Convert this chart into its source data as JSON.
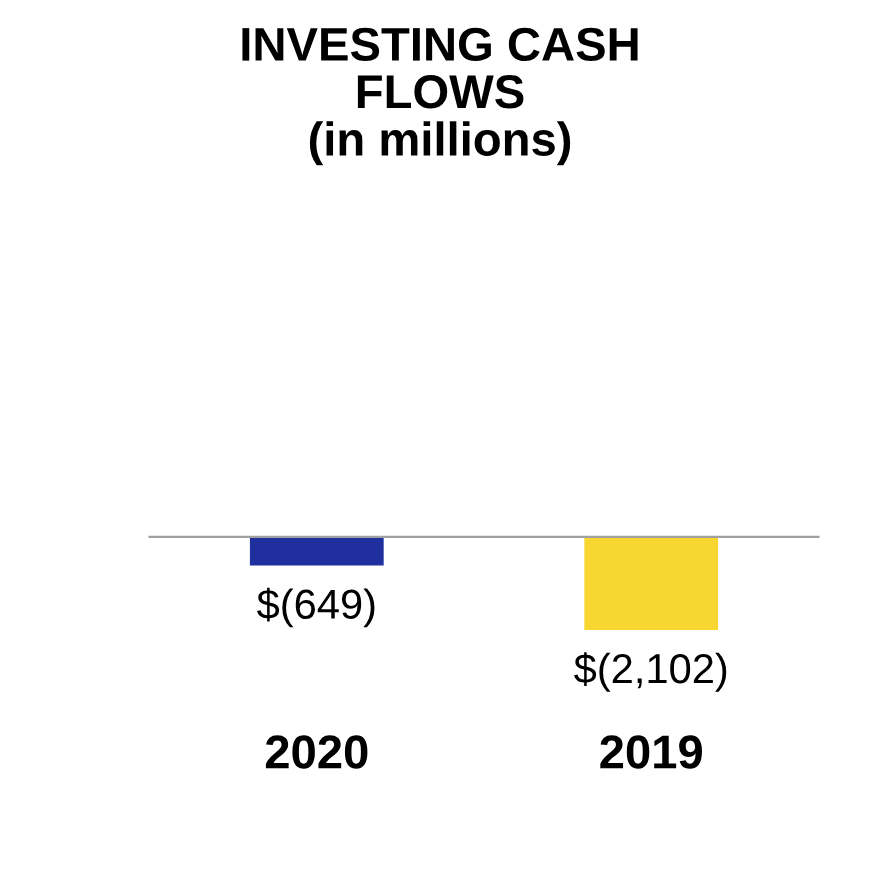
{
  "chart_data": {
    "type": "bar",
    "title": "INVESTING CASH\nFLOWS\n(in millions)",
    "categories": [
      "2020",
      "2019"
    ],
    "values": [
      -649,
      -2102
    ],
    "colors": [
      "#1f2f9e",
      "#f7d631"
    ],
    "value_labels": [
      "$(649)",
      "$(2,102)"
    ],
    "grid": false,
    "legend": false
  }
}
